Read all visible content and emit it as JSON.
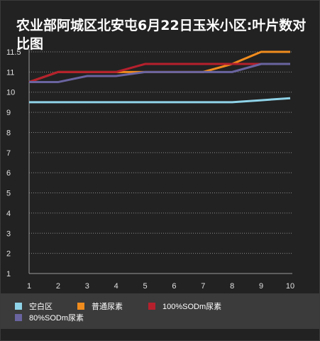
{
  "chart_data": {
    "type": "line",
    "title": "农业部阿城区北安屯6月22日玉米小区:叶片数对比图",
    "xlabel": "",
    "ylabel": "",
    "x": [
      1,
      2,
      3,
      4,
      5,
      6,
      7,
      8,
      9,
      10
    ],
    "yticks": [
      "1",
      "2",
      "3",
      "4",
      "5",
      "6",
      "7",
      "8",
      "9",
      "10",
      "11",
      "11.5"
    ],
    "ylim": [
      1,
      11.5
    ],
    "grid": true,
    "legend_position": "bottom",
    "series": [
      {
        "name": "空白区",
        "color": "#8fd3e8",
        "values": [
          9.5,
          9.5,
          9.5,
          9.5,
          9.5,
          9.5,
          9.5,
          9.5,
          9.6,
          9.7
        ]
      },
      {
        "name": "普通尿素",
        "color": "#f08c1e",
        "values": [
          10.5,
          11,
          11,
          11,
          11,
          11,
          11,
          11.2,
          11.5,
          11.5
        ]
      },
      {
        "name": "100%SODm尿素",
        "color": "#b5202d",
        "values": [
          10.5,
          11,
          11,
          11,
          11.2,
          11.2,
          11.2,
          11.2,
          11.2,
          11.2
        ]
      },
      {
        "name": "80%SODm尿素",
        "color": "#6a64a0",
        "values": [
          10.5,
          10.5,
          10.8,
          10.8,
          11,
          11,
          11,
          11,
          11.2,
          11.2
        ]
      }
    ]
  }
}
